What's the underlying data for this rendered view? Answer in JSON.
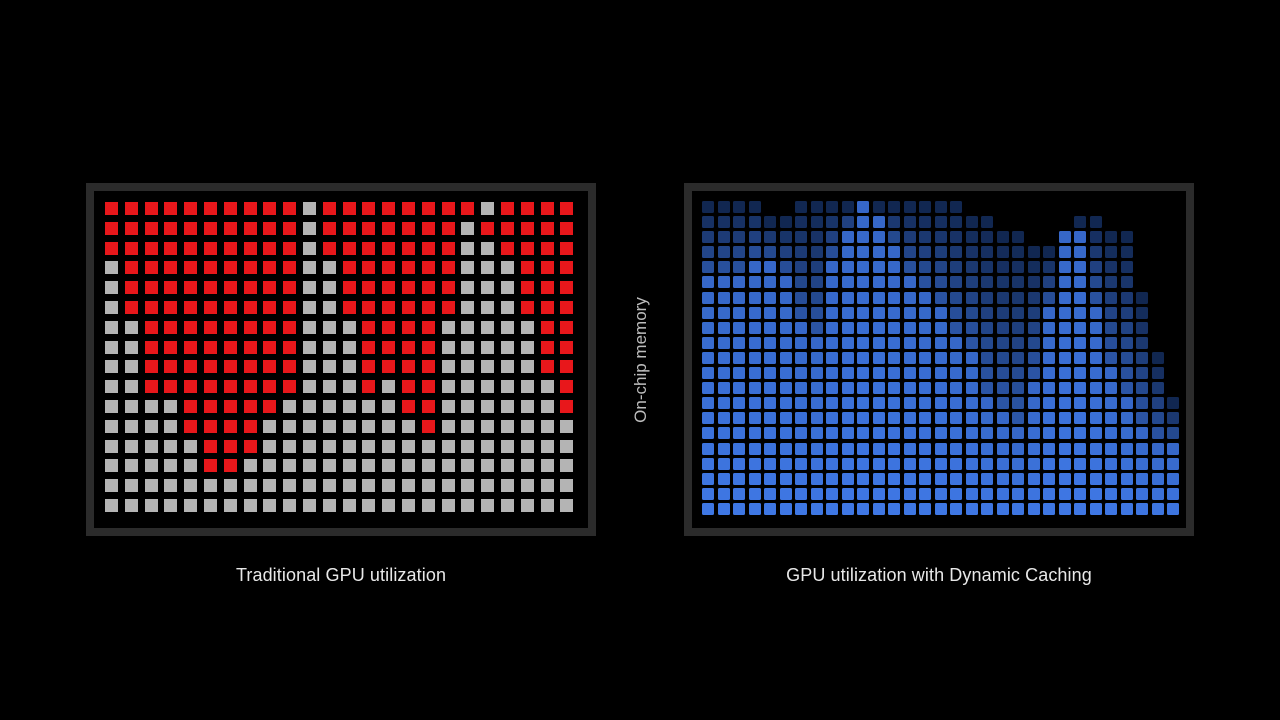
{
  "diagram": {
    "left_panel": {
      "caption": "Traditional GPU utilization",
      "columns": 24,
      "rows": 16,
      "used_color": "#e8171b",
      "free_color": "#b4b4b4",
      "column_used_rows": [
        [
          0,
          3
        ],
        [
          0,
          6
        ],
        [
          0,
          10
        ],
        [
          0,
          10
        ],
        [
          0,
          12
        ],
        [
          0,
          14
        ],
        [
          0,
          14
        ],
        [
          0,
          13
        ],
        [
          0,
          11
        ],
        [
          0,
          10
        ],
        [
          1,
          1
        ],
        [
          0,
          3
        ],
        [
          0,
          6
        ],
        [
          0,
          10
        ],
        [
          0,
          9
        ],
        [
          0,
          11
        ],
        [
          0,
          12
        ],
        [
          0,
          6
        ],
        [
          0,
          1
        ],
        [
          1,
          2
        ],
        [
          0,
          3
        ],
        [
          0,
          6
        ],
        [
          0,
          9
        ],
        [
          0,
          11
        ]
      ]
    },
    "right_panel": {
      "caption": "GPU utilization with Dynamic Caching",
      "columns": 31,
      "rows": 21,
      "active_color": "#3f78e6",
      "inactive_color": "#0b1c3d",
      "column_tops": [
        0,
        0,
        0,
        0,
        1,
        1,
        0,
        0,
        0,
        0,
        0,
        0,
        0,
        0,
        0,
        0,
        0,
        1,
        1,
        2,
        2,
        3,
        3,
        2,
        1,
        1,
        2,
        2,
        6,
        10,
        13
      ],
      "column_active_from": [
        5,
        5,
        5,
        4,
        4,
        5,
        8,
        9,
        4,
        2,
        0,
        1,
        3,
        5,
        6,
        7,
        9,
        10,
        13,
        14,
        15,
        12,
        7,
        2,
        2,
        7,
        11,
        13,
        15,
        16,
        16
      ]
    },
    "axis_label": "On-chip memory"
  }
}
